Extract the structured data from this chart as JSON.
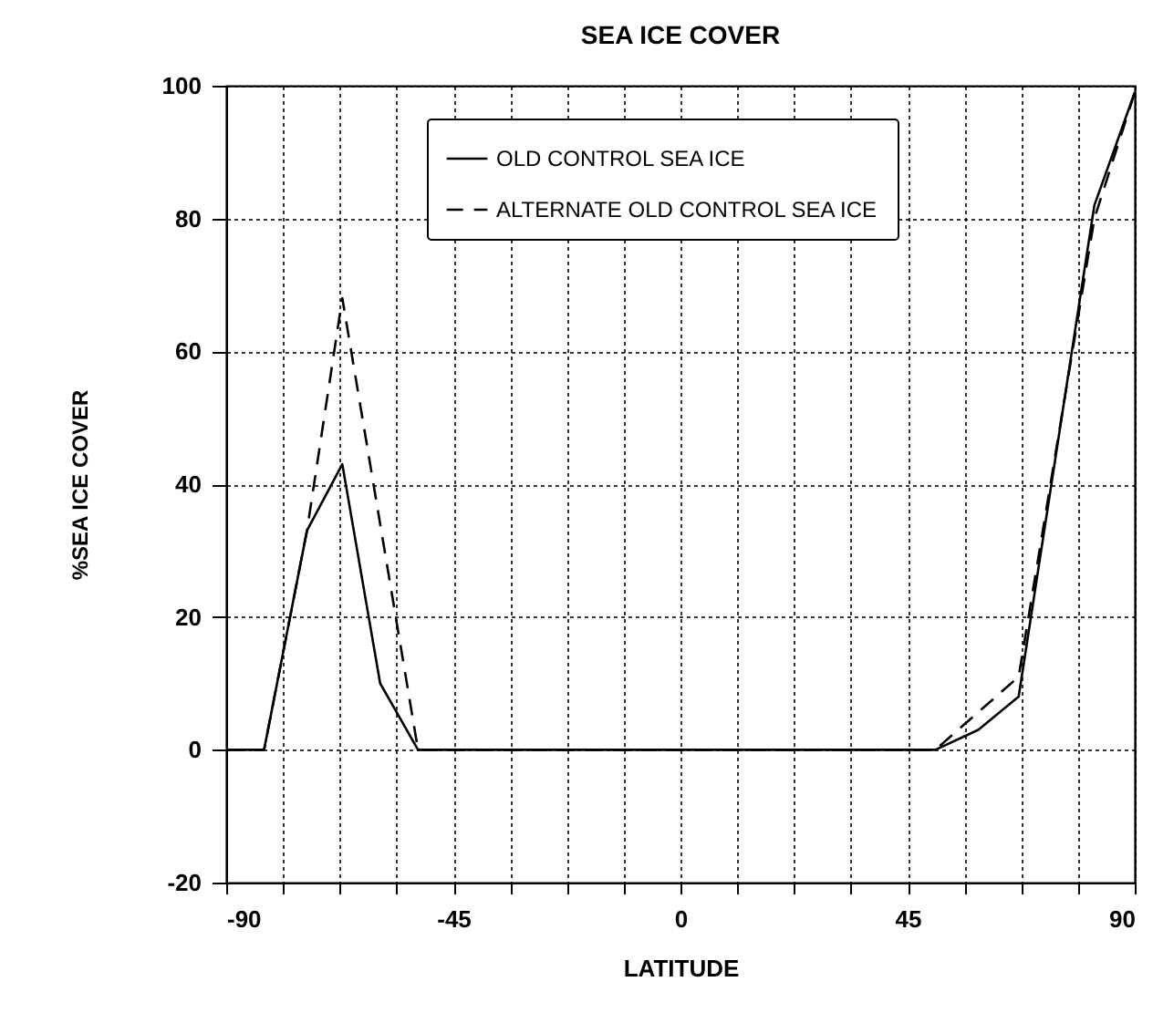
{
  "chart_data": {
    "type": "line",
    "title": "SEA ICE COVER",
    "xlabel": "LATITUDE",
    "ylabel": "%SEA ICE COVER",
    "series": [
      {
        "name": "OLD CONTROL SEA ICE",
        "color": "#000000",
        "line_style": "solid",
        "x": [
          -90,
          -82.5,
          -74,
          -67,
          -59.5,
          -52,
          50.5,
          59,
          67,
          82,
          90
        ],
        "values": [
          0,
          0,
          33,
          43,
          10,
          0,
          0,
          3,
          8,
          82,
          99
        ]
      },
      {
        "name": "ALTERNATE OLD CONTROL SEA ICE",
        "color": "#000000",
        "line_style": "dashed",
        "x": [
          -90,
          -82.5,
          -74,
          -67,
          -52,
          50.5,
          67,
          82,
          90
        ],
        "values": [
          0,
          0,
          33,
          68,
          0,
          0,
          11,
          80,
          99
        ]
      }
    ],
    "xlim": [
      -90,
      90
    ],
    "xticks": [
      -90,
      {
        "value": -78.75,
        "label": null
      },
      {
        "value": -67.5,
        "label": null
      },
      {
        "value": -56.25,
        "label": null
      },
      -45,
      {
        "value": -33.75,
        "label": null
      },
      {
        "value": -22.5,
        "label": null
      },
      {
        "value": -11.25,
        "label": null
      },
      0,
      {
        "value": 11.25,
        "label": null
      },
      {
        "value": 22.5,
        "label": null
      },
      {
        "value": 33.75,
        "label": null
      },
      45,
      {
        "value": 56.25,
        "label": null
      },
      {
        "value": 67.5,
        "label": null
      },
      {
        "value": 78.75,
        "label": null
      },
      90
    ],
    "ylim": [
      -20,
      100
    ],
    "yticks": [
      -20,
      0,
      20,
      40,
      60,
      80,
      100
    ],
    "grid": true,
    "legend": "top"
  }
}
